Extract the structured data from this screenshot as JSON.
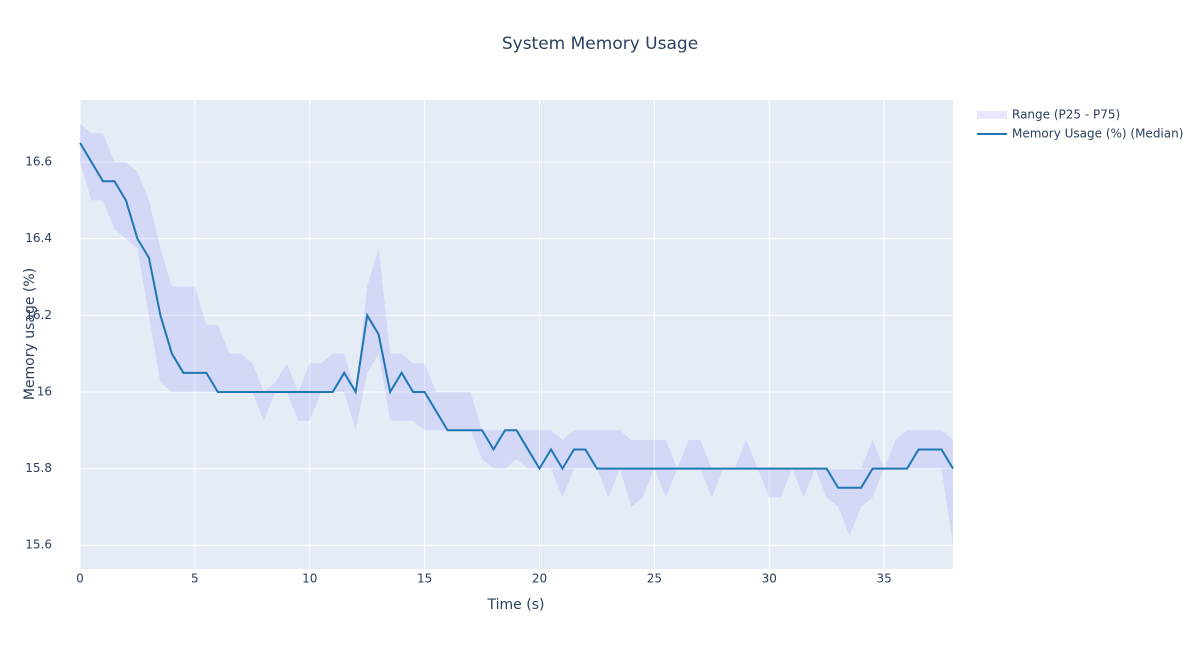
{
  "chart_data": {
    "type": "line",
    "title": "System Memory Usage",
    "x_label": "Time (s)",
    "y_label": "Memory usage (%)",
    "x": [
      0,
      0.5,
      1,
      1.5,
      2,
      2.5,
      3,
      3.5,
      4,
      4.5,
      5,
      5.5,
      6,
      6.5,
      7,
      7.5,
      8,
      8.5,
      9,
      9.5,
      10,
      10.5,
      11,
      11.5,
      12,
      12.5,
      13,
      13.5,
      14,
      14.5,
      15,
      15.5,
      16,
      16.5,
      17,
      17.5,
      18,
      18.5,
      19,
      19.5,
      20,
      20.5,
      21,
      21.5,
      22,
      22.5,
      23,
      23.5,
      24,
      24.5,
      25,
      25.5,
      26,
      26.5,
      27,
      27.5,
      28,
      28.5,
      29,
      29.5,
      30,
      30.5,
      31,
      31.5,
      32,
      32.5,
      33,
      33.5,
      34,
      34.5,
      35,
      35.5,
      36,
      36.5,
      37,
      37.5,
      38
    ],
    "series": [
      {
        "name": "Range (P25 - P75)",
        "color": "rgba(99,110,250,0.15)",
        "upper": [
          16.7,
          16.675,
          16.675,
          16.6,
          16.6,
          16.575,
          16.5,
          16.375,
          16.275,
          16.275,
          16.275,
          16.175,
          16.175,
          16.1,
          16.1,
          16.075,
          16,
          16.025,
          16.075,
          16,
          16.075,
          16.075,
          16.1,
          16.1,
          16,
          16.275,
          16.375,
          16.1,
          16.1,
          16.075,
          16.075,
          16,
          16,
          16,
          16,
          15.9,
          15.9,
          15.9,
          15.9,
          15.9,
          15.9,
          15.9,
          15.875,
          15.9,
          15.9,
          15.9,
          15.9,
          15.9,
          15.875,
          15.875,
          15.875,
          15.875,
          15.8,
          15.875,
          15.875,
          15.8,
          15.8,
          15.8,
          15.875,
          15.8,
          15.8,
          15.8,
          15.8,
          15.8,
          15.8,
          15.8,
          15.8,
          15.8,
          15.8,
          15.875,
          15.8,
          15.875,
          15.9,
          15.9,
          15.9,
          15.9,
          15.875
        ],
        "lower": [
          16.6,
          16.5,
          16.5,
          16.425,
          16.4,
          16.375,
          16.2,
          16.025,
          16,
          16,
          16,
          16,
          16,
          16,
          16,
          16,
          15.925,
          16,
          16,
          15.925,
          15.925,
          16,
          16,
          16,
          15.9,
          16.05,
          16.1,
          15.925,
          15.925,
          15.925,
          15.9,
          15.9,
          15.9,
          15.9,
          15.9,
          15.825,
          15.8,
          15.8,
          15.825,
          15.8,
          15.8,
          15.8,
          15.725,
          15.8,
          15.8,
          15.8,
          15.725,
          15.8,
          15.7,
          15.725,
          15.8,
          15.725,
          15.8,
          15.8,
          15.8,
          15.725,
          15.8,
          15.8,
          15.8,
          15.8,
          15.725,
          15.725,
          15.8,
          15.725,
          15.8,
          15.725,
          15.7,
          15.625,
          15.7,
          15.725,
          15.8,
          15.8,
          15.8,
          15.8,
          15.8,
          15.8,
          15.6
        ]
      },
      {
        "name": "Memory Usage (%) (Median)",
        "color": "#1f77b4",
        "values": [
          16.65,
          16.6,
          16.55,
          16.55,
          16.5,
          16.4,
          16.35,
          16.2,
          16.1,
          16.05,
          16.05,
          16.05,
          16,
          16,
          16,
          16,
          16,
          16,
          16,
          16,
          16,
          16,
          16,
          16.05,
          16,
          16.2,
          16.15,
          16,
          16.05,
          16,
          16,
          15.95,
          15.9,
          15.9,
          15.9,
          15.9,
          15.85,
          15.9,
          15.9,
          15.85,
          15.8,
          15.85,
          15.8,
          15.85,
          15.85,
          15.8,
          15.8,
          15.8,
          15.8,
          15.8,
          15.8,
          15.8,
          15.8,
          15.8,
          15.8,
          15.8,
          15.8,
          15.8,
          15.8,
          15.8,
          15.8,
          15.8,
          15.8,
          15.8,
          15.8,
          15.8,
          15.75,
          15.75,
          15.75,
          15.8,
          15.8,
          15.8,
          15.8,
          15.85,
          15.85,
          15.85,
          15.8
        ]
      }
    ],
    "xlim": [
      0,
      38
    ],
    "ylim": [
      15.538,
      16.762
    ],
    "xticks": [
      0,
      5,
      10,
      15,
      20,
      25,
      30,
      35
    ],
    "yticks": [
      15.6,
      15.8,
      16,
      16.2,
      16.4,
      16.6
    ],
    "grid": true,
    "legend": "right",
    "background": "#e5ecf6"
  }
}
